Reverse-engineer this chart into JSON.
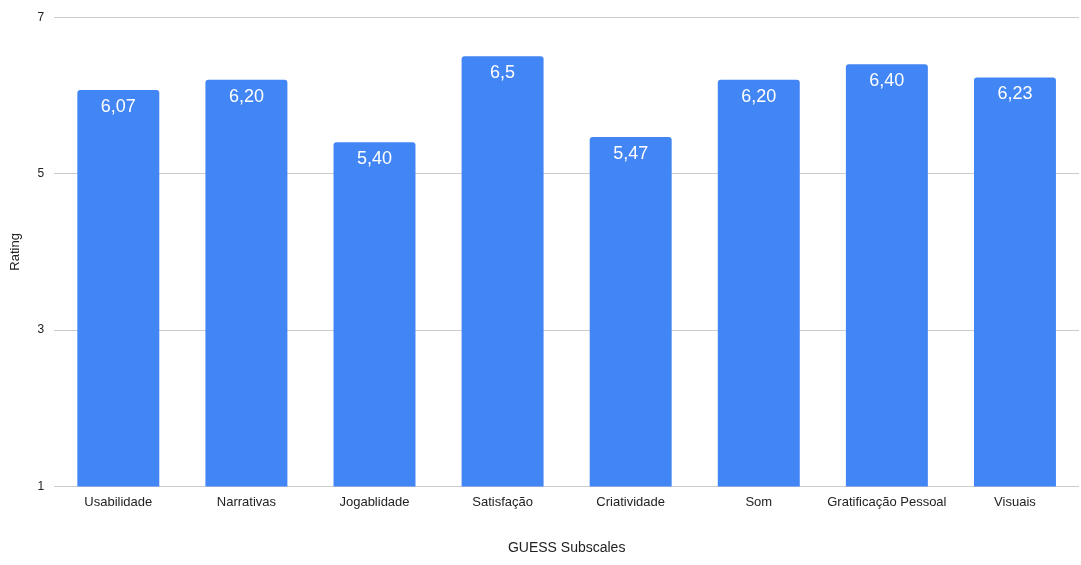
{
  "chart_data": {
    "type": "bar",
    "xlabel": "GUESS Subscales",
    "ylabel": "Rating",
    "categories": [
      "Usabilidade",
      "Narrativas",
      "Jogablidade",
      "Satisfação",
      "Criatividade",
      "Som",
      "Gratificação Pessoal",
      "Visuais"
    ],
    "values": [
      6.07,
      6.2,
      5.4,
      6.5,
      5.47,
      6.2,
      6.4,
      6.23
    ],
    "value_labels": [
      "6,07",
      "6,20",
      "5,40",
      "6,5",
      "5,47",
      "6,20",
      "6,40",
      "6,23"
    ],
    "color": "#4285f4",
    "ylim": [
      1,
      7
    ],
    "yticks": [
      1,
      3,
      5,
      7
    ],
    "grid": "y",
    "legend": false
  }
}
